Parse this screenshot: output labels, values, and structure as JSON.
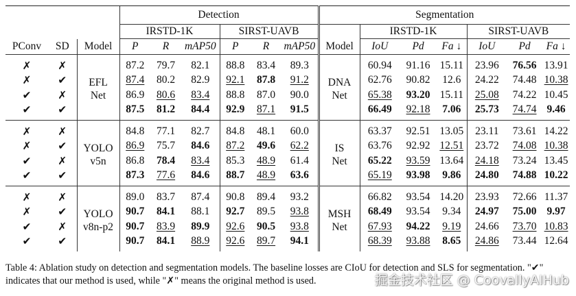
{
  "headers": {
    "detection": "Detection",
    "segmentation": "Segmentation",
    "pconv": "PConv",
    "sd": "SD",
    "model": "Model",
    "det_ds1": "IRSTD-1K",
    "det_ds2": "SIRST-UAVB",
    "seg_ds1": "IRSTD-1K",
    "seg_ds2": "SIRST-UAVB",
    "det_metrics": [
      "P",
      "R",
      "mAP50"
    ],
    "seg_metrics": [
      "IoU",
      "Pd",
      "Fa ↓"
    ]
  },
  "marks": {
    "yes": "✔",
    "no": "✗"
  },
  "groups": [
    {
      "det_model": [
        "EFL",
        "Net"
      ],
      "seg_model": [
        "DNA",
        "Net"
      ],
      "rows": [
        {
          "pconv": "no",
          "sd": "no",
          "det": [
            {
              "v": "87.2"
            },
            {
              "v": "79.7"
            },
            {
              "v": "82.1"
            },
            {
              "v": "88.8"
            },
            {
              "v": "83.4"
            },
            {
              "v": "89.3"
            }
          ],
          "seg": [
            {
              "v": "60.94"
            },
            {
              "v": "91.16"
            },
            {
              "v": "15.11"
            },
            {
              "v": "23.96"
            },
            {
              "v": "76.56",
              "b": true
            },
            {
              "v": "13.91"
            }
          ]
        },
        {
          "pconv": "no",
          "sd": "yes",
          "det": [
            {
              "v": "87.4",
              "u": true
            },
            {
              "v": "80.2"
            },
            {
              "v": "82.9"
            },
            {
              "v": "92.1",
              "u": true
            },
            {
              "v": "87.8",
              "b": true
            },
            {
              "v": "91.2",
              "u": true
            }
          ],
          "seg": [
            {
              "v": "62.76"
            },
            {
              "v": "90.82"
            },
            {
              "v": "12.6"
            },
            {
              "v": "24.22"
            },
            {
              "v": "74.48"
            },
            {
              "v": "10.38",
              "u": true
            }
          ]
        },
        {
          "pconv": "yes",
          "sd": "no",
          "det": [
            {
              "v": "86.9"
            },
            {
              "v": "80.6",
              "u": true
            },
            {
              "v": "83.4",
              "u": true
            },
            {
              "v": "88.8"
            },
            {
              "v": "87.0"
            },
            {
              "v": "90.0"
            }
          ],
          "seg": [
            {
              "v": "65.38",
              "u": true
            },
            {
              "v": "93.20",
              "b": true
            },
            {
              "v": "15.11"
            },
            {
              "v": "25.08",
              "u": true
            },
            {
              "v": "74.22"
            },
            {
              "v": "10.45"
            }
          ]
        },
        {
          "pconv": "yes",
          "sd": "yes",
          "det": [
            {
              "v": "87.5",
              "b": true
            },
            {
              "v": "81.2",
              "b": true
            },
            {
              "v": "84.4",
              "b": true
            },
            {
              "v": "92.9",
              "b": true
            },
            {
              "v": "87.1",
              "u": true
            },
            {
              "v": "91.5",
              "b": true
            }
          ],
          "seg": [
            {
              "v": "66.49",
              "b": true
            },
            {
              "v": "92.18",
              "u": true
            },
            {
              "v": "7.06",
              "b": true
            },
            {
              "v": "25.73",
              "b": true
            },
            {
              "v": "74.74",
              "u": true
            },
            {
              "v": "9.46",
              "b": true
            }
          ]
        }
      ]
    },
    {
      "det_model": [
        "YOLO",
        "v5n"
      ],
      "seg_model": [
        "IS",
        "Net"
      ],
      "rows": [
        {
          "pconv": "no",
          "sd": "no",
          "det": [
            {
              "v": "84.8"
            },
            {
              "v": "77.1"
            },
            {
              "v": "82.7"
            },
            {
              "v": "84.8"
            },
            {
              "v": "48.1"
            },
            {
              "v": "60.0"
            }
          ],
          "seg": [
            {
              "v": "63.37"
            },
            {
              "v": "92.51"
            },
            {
              "v": "13.05"
            },
            {
              "v": "23.11"
            },
            {
              "v": "73.61"
            },
            {
              "v": "14.22"
            }
          ]
        },
        {
          "pconv": "no",
          "sd": "yes",
          "det": [
            {
              "v": "86.9",
              "u": true
            },
            {
              "v": "75.7"
            },
            {
              "v": "84.6",
              "b": true
            },
            {
              "v": "87.2",
              "u": true
            },
            {
              "v": "49.6",
              "b": true
            },
            {
              "v": "62.2",
              "u": true
            }
          ],
          "seg": [
            {
              "v": "63.76"
            },
            {
              "v": "92.92"
            },
            {
              "v": "12.51",
              "u": true
            },
            {
              "v": "23.72"
            },
            {
              "v": "74.08",
              "u": true
            },
            {
              "v": "10.38",
              "u": true
            }
          ]
        },
        {
          "pconv": "yes",
          "sd": "no",
          "det": [
            {
              "v": "86.8"
            },
            {
              "v": "78.4",
              "b": true
            },
            {
              "v": "83.4",
              "u": true
            },
            {
              "v": "85.3"
            },
            {
              "v": "48.9",
              "u": true
            },
            {
              "v": "61.4"
            }
          ],
          "seg": [
            {
              "v": "65.22",
              "b": true
            },
            {
              "v": "93.59",
              "u": true
            },
            {
              "v": "13.64"
            },
            {
              "v": "24.18",
              "u": true
            },
            {
              "v": "73.24"
            },
            {
              "v": "13.45"
            }
          ]
        },
        {
          "pconv": "yes",
          "sd": "yes",
          "det": [
            {
              "v": "87.3",
              "b": true
            },
            {
              "v": "77.6",
              "u": true
            },
            {
              "v": "84.6",
              "b": true
            },
            {
              "v": "88.7",
              "b": true
            },
            {
              "v": "48.9",
              "u": true
            },
            {
              "v": "63.6",
              "b": true
            }
          ],
          "seg": [
            {
              "v": "65.19",
              "u": true
            },
            {
              "v": "93.98",
              "b": true
            },
            {
              "v": "9.86",
              "b": true
            },
            {
              "v": "24.80",
              "b": true
            },
            {
              "v": "74.88",
              "b": true
            },
            {
              "v": "10.22",
              "b": true
            }
          ]
        }
      ]
    },
    {
      "det_model": [
        "YOLO",
        "v8n-p2"
      ],
      "seg_model": [
        "MSH",
        "Net"
      ],
      "rows": [
        {
          "pconv": "no",
          "sd": "no",
          "det": [
            {
              "v": "89.0"
            },
            {
              "v": "83.7"
            },
            {
              "v": "87.4"
            },
            {
              "v": "90.8"
            },
            {
              "v": "89.4"
            },
            {
              "v": "93.2"
            }
          ],
          "seg": [
            {
              "v": "66.82"
            },
            {
              "v": "93.54"
            },
            {
              "v": "14.20"
            },
            {
              "v": "23.93"
            },
            {
              "v": "72.66"
            },
            {
              "v": "11.37"
            }
          ]
        },
        {
          "pconv": "no",
          "sd": "yes",
          "det": [
            {
              "v": "90.7",
              "b": true
            },
            {
              "v": "84.1",
              "b": true
            },
            {
              "v": "88.1"
            },
            {
              "v": "92.7",
              "b": true
            },
            {
              "v": "89.5"
            },
            {
              "v": "93.8",
              "u": true
            }
          ],
          "seg": [
            {
              "v": "68.49",
              "b": true
            },
            {
              "v": "93.54"
            },
            {
              "v": "9.34"
            },
            {
              "v": "24.97",
              "b": true
            },
            {
              "v": "75.00",
              "b": true
            },
            {
              "v": "9.97",
              "b": true
            }
          ]
        },
        {
          "pconv": "yes",
          "sd": "no",
          "det": [
            {
              "v": "90.7",
              "b": true
            },
            {
              "v": "83.9",
              "u": true
            },
            {
              "v": "89.9",
              "b": true
            },
            {
              "v": "92.6",
              "u": true
            },
            {
              "v": "90.5",
              "b": true
            },
            {
              "v": "93.8",
              "u": true
            }
          ],
          "seg": [
            {
              "v": "67.93",
              "u": true
            },
            {
              "v": "94.22",
              "b": true
            },
            {
              "v": "9.19",
              "u": true
            },
            {
              "v": "24.66"
            },
            {
              "v": "73.70",
              "u": true
            },
            {
              "v": "10.83",
              "u": true
            }
          ]
        },
        {
          "pconv": "yes",
          "sd": "yes",
          "det": [
            {
              "v": "90.7",
              "b": true
            },
            {
              "v": "84.1",
              "b": true
            },
            {
              "v": "88.9",
              "u": true
            },
            {
              "v": "92.6",
              "u": true
            },
            {
              "v": "89.7",
              "u": true
            },
            {
              "v": "94.1",
              "b": true
            }
          ],
          "seg": [
            {
              "v": "68.39",
              "u": true
            },
            {
              "v": "93.88",
              "u": true
            },
            {
              "v": "8.65",
              "b": true
            },
            {
              "v": "24.86",
              "u": true
            },
            {
              "v": "73.44"
            },
            {
              "v": "12.64"
            }
          ]
        }
      ]
    }
  ],
  "caption": "Table 4: Ablation study on detection and segmentation models. The baseline losses are CIoU for detection and SLS for segmentation. \"✔\" indicates that our method is used, while \"✗\" means the original method is used.",
  "watermark": "掘金技术社区 @ CoovallyAIHub"
}
